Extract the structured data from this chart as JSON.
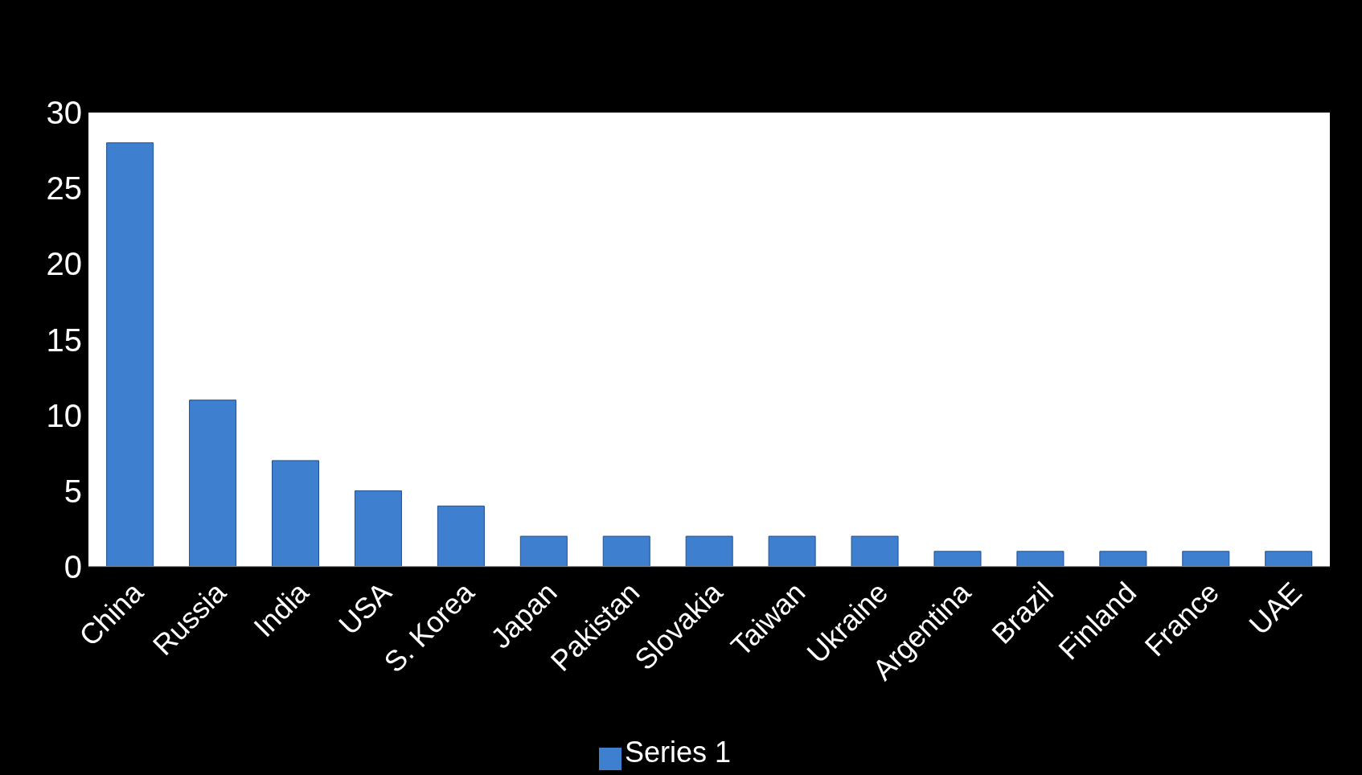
{
  "chart_data": {
    "type": "bar",
    "categories": [
      "China",
      "Russia",
      "India",
      "USA",
      "S. Korea",
      "Japan",
      "Pakistan",
      "Slovakia",
      "Taiwan",
      "Ukraine",
      "Argentina",
      "Brazil",
      "Finland",
      "France",
      "UAE"
    ],
    "series": [
      {
        "name": "Series 1",
        "color": "#3f7fd0",
        "values": [
          28,
          11,
          7,
          5,
          4,
          2,
          2,
          2,
          2,
          2,
          1,
          1,
          1,
          1,
          1
        ]
      }
    ],
    "ylim": [
      0,
      30
    ],
    "yticks": [
      0,
      5,
      10,
      15,
      20,
      25,
      30
    ],
    "grid": false,
    "legend": "bottom"
  }
}
